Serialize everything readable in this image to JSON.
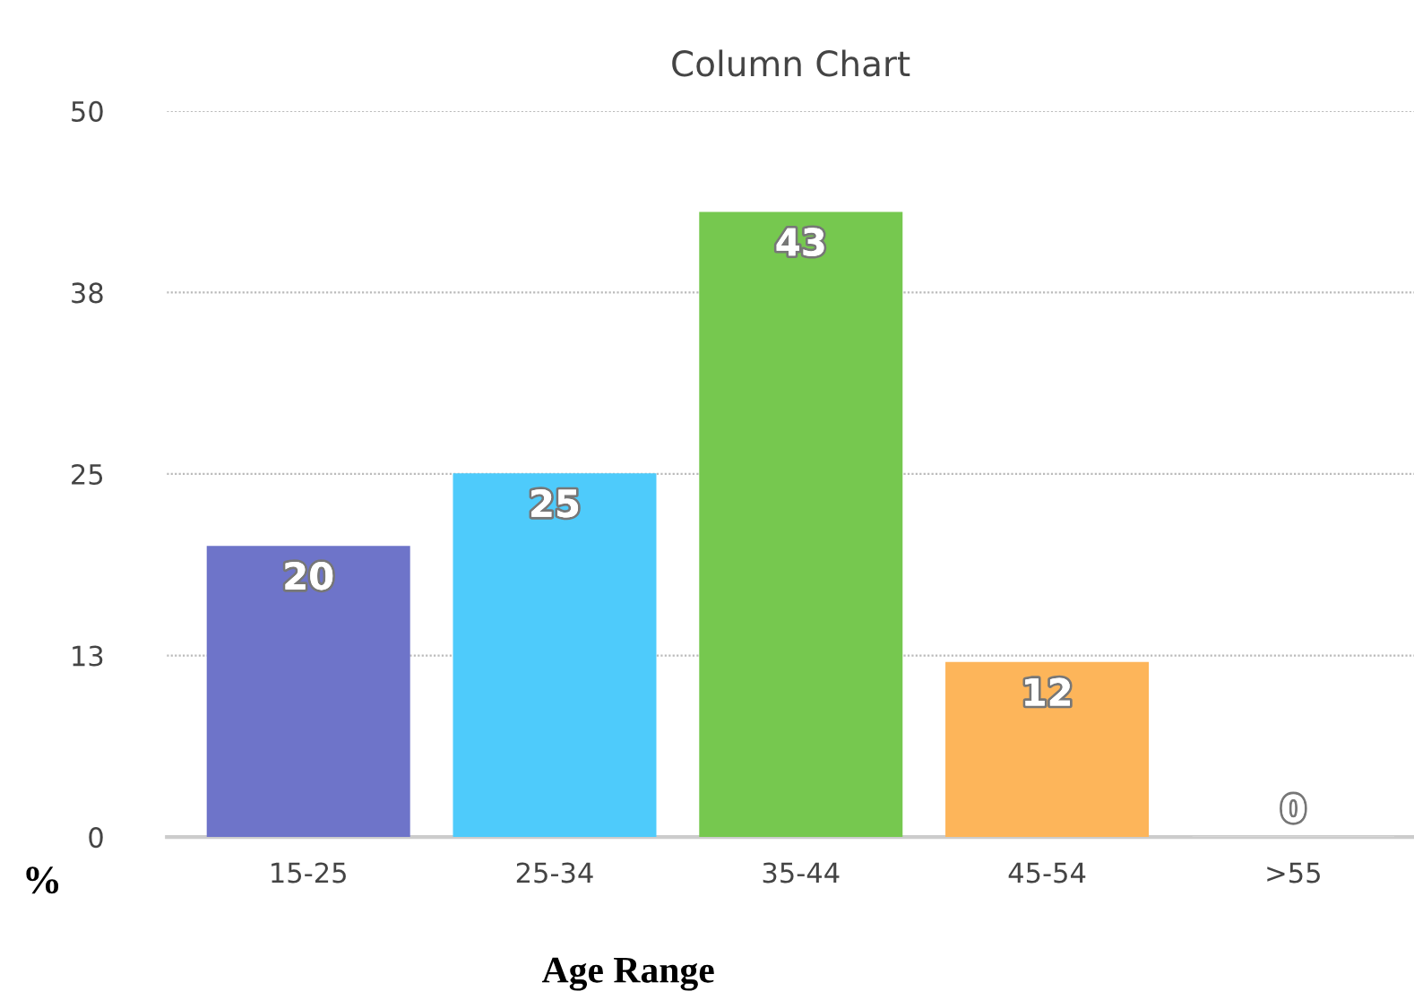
{
  "chart_data": {
    "type": "bar",
    "title": "Column Chart",
    "xlabel": "Age Range",
    "ylabel": "%",
    "categories": [
      "15-25",
      "25-34",
      "35-44",
      "45-54",
      ">55"
    ],
    "values": [
      20,
      25,
      43,
      12,
      0
    ],
    "colors": [
      "#6e74c9",
      "#4ecbfb",
      "#76c84f",
      "#fdb55a",
      "#d9d9d9"
    ],
    "ylim": [
      0,
      50
    ],
    "yticks": [
      0,
      {
        "value": 12.5,
        "label": "13"
      },
      25,
      {
        "value": 37.5,
        "label": "38"
      },
      50
    ],
    "grid": "y",
    "data_labels": true,
    "legend": false
  }
}
